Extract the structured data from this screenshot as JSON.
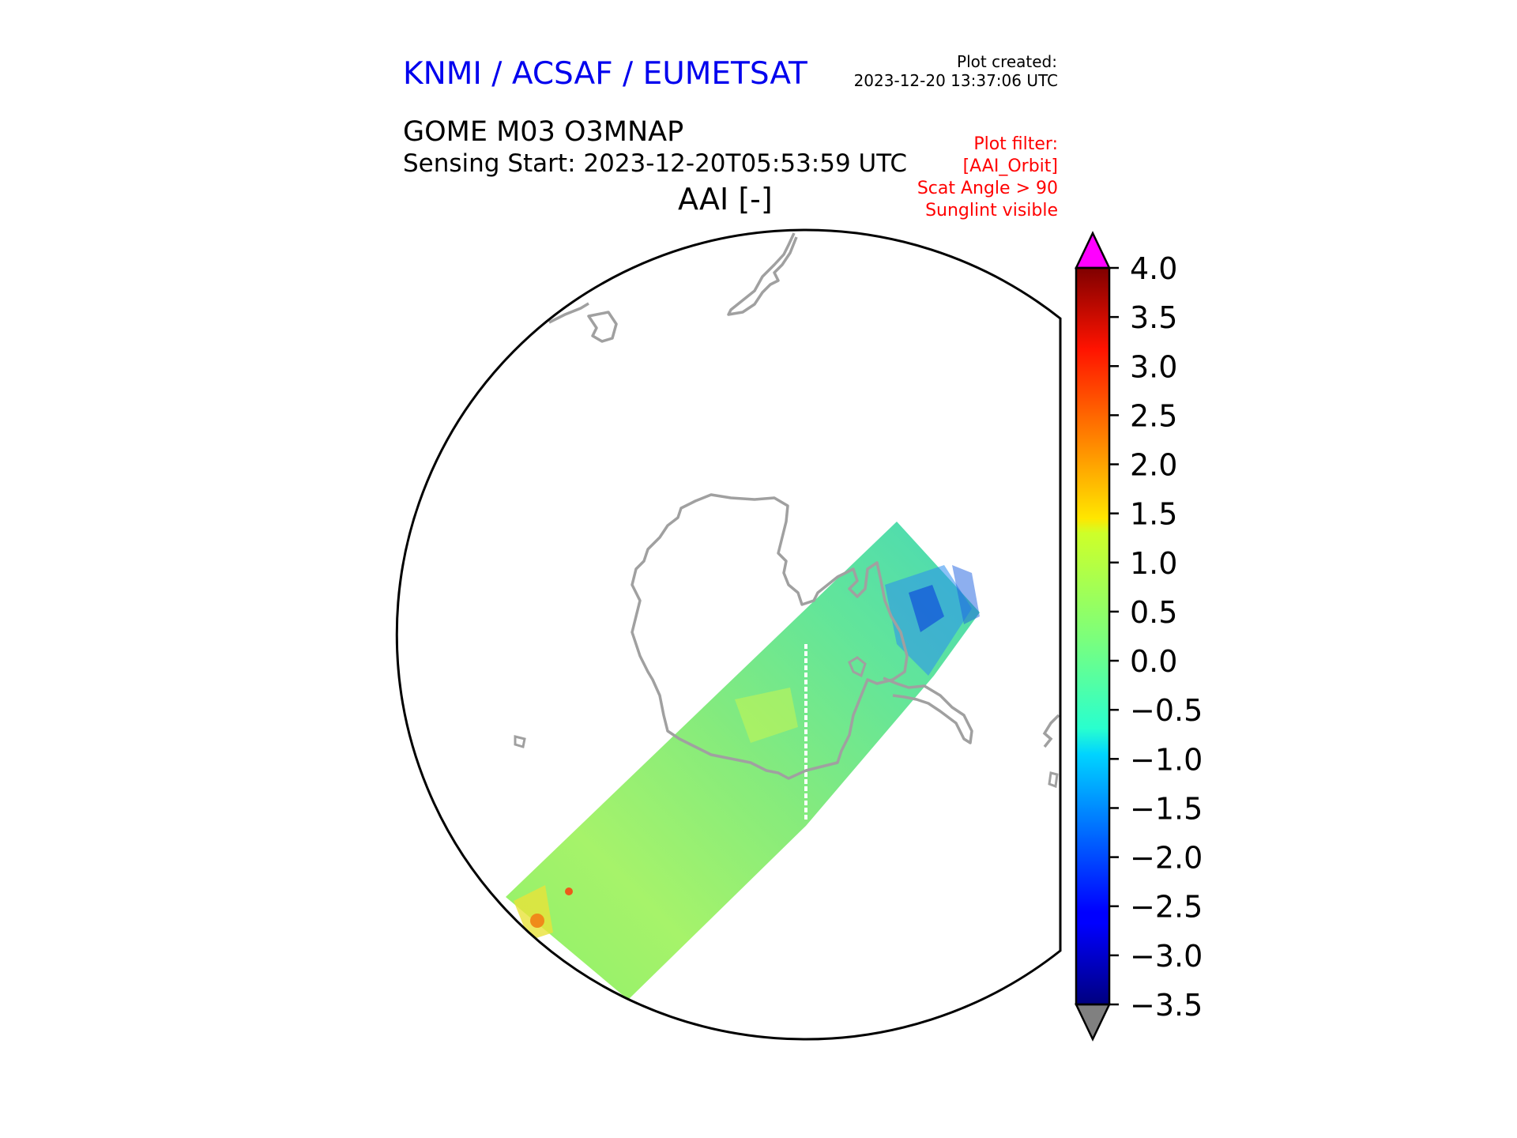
{
  "header": {
    "organisation": "KNMI / ACSAF / EUMETSAT",
    "created_label": "Plot created:",
    "created_time": "2023-12-20 13:37:06 UTC"
  },
  "product": {
    "name": "GOME M03 O3MNAP",
    "sensing_start": "Sensing Start: 2023-12-20T05:53:59 UTC",
    "variable": "AAI [-]"
  },
  "filter": {
    "lines": [
      "Plot filter:",
      "[AAI_Orbit]",
      "Scat Angle > 90",
      "Sunglint visible"
    ]
  },
  "colorbar": {
    "min": -3.5,
    "max": 4.0,
    "ticks": [
      "4.0",
      "3.5",
      "3.0",
      "2.5",
      "2.0",
      "1.5",
      "1.0",
      "0.5",
      "0.0",
      "−0.5",
      "−1.0",
      "−1.5",
      "−2.0",
      "−2.5",
      "−3.0",
      "−3.5"
    ],
    "over_color": "#ff00ff",
    "under_color": "#808080",
    "colormap": "jet"
  },
  "map": {
    "projection": "south-polar-stereographic",
    "coastline_color": "#a0a0a0",
    "swath_typical_value": 0.0
  }
}
